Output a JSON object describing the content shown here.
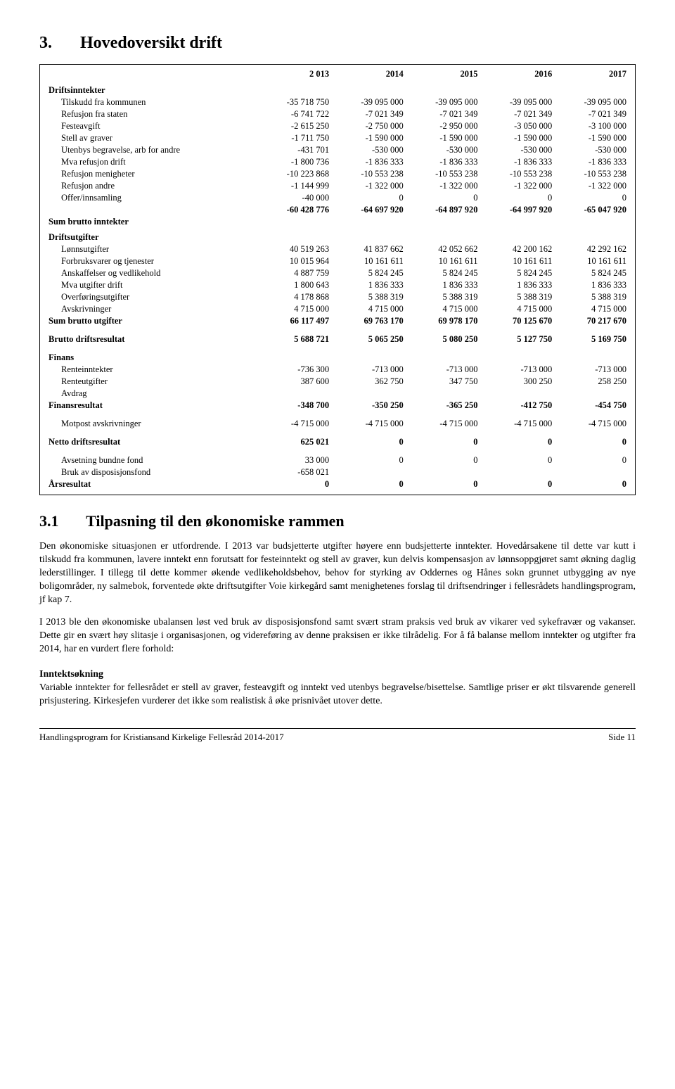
{
  "section": {
    "number": "3.",
    "title": "Hovedoversikt drift"
  },
  "subsection": {
    "number": "3.1",
    "title": "Tilpasning til den økonomiske rammen"
  },
  "years": [
    "2 013",
    "2014",
    "2015",
    "2016",
    "2017"
  ],
  "groups": [
    {
      "head": "Driftsinntekter",
      "rows": [
        {
          "label": "Tilskudd fra kommunen",
          "v": [
            "-35 718 750",
            "-39 095 000",
            "-39 095 000",
            "-39 095 000",
            "-39 095 000"
          ]
        },
        {
          "label": "Refusjon fra staten",
          "v": [
            "-6 741 722",
            "-7 021 349",
            "-7 021 349",
            "-7 021 349",
            "-7 021 349"
          ]
        },
        {
          "label": "Festeavgift",
          "v": [
            "-2 615 250",
            "-2 750 000",
            "-2 950 000",
            "-3 050 000",
            "-3 100 000"
          ]
        },
        {
          "label": "Stell av graver",
          "v": [
            "-1 711 750",
            "-1 590 000",
            "-1 590 000",
            "-1 590 000",
            "-1 590 000"
          ]
        },
        {
          "label": "Utenbys begravelse, arb for andre",
          "v": [
            "-431 701",
            "-530 000",
            "-530 000",
            "-530 000",
            "-530 000"
          ]
        },
        {
          "label": "Mva refusjon drift",
          "v": [
            "-1 800 736",
            "-1 836 333",
            "-1 836 333",
            "-1 836 333",
            "-1 836 333"
          ]
        },
        {
          "label": "Refusjon menigheter",
          "v": [
            "-10 223 868",
            "-10 553 238",
            "-10 553 238",
            "-10 553 238",
            "-10 553 238"
          ]
        },
        {
          "label": "Refusjon andre",
          "v": [
            "-1 144 999",
            "-1 322 000",
            "-1 322 000",
            "-1 322 000",
            "-1 322 000"
          ]
        },
        {
          "label": "Offer/innsamling",
          "v": [
            "-40 000",
            "0",
            "0",
            "0",
            "0"
          ]
        }
      ],
      "tail_total": {
        "v": [
          "-60 428 776",
          "-64 697 920",
          "-64 897 920",
          "-64 997 920",
          "-65 047 920"
        ]
      },
      "tail_label": "Sum brutto inntekter"
    },
    {
      "head": "Driftsutgifter",
      "rows": [
        {
          "label": "Lønnsutgifter",
          "v": [
            "40 519 263",
            "41 837 662",
            "42 052 662",
            "42 200 162",
            "42 292 162"
          ]
        },
        {
          "label": "Forbruksvarer og tjenester",
          "v": [
            "10 015 964",
            "10 161 611",
            "10 161 611",
            "10 161 611",
            "10 161 611"
          ]
        },
        {
          "label": "Anskaffelser og vedlikehold",
          "v": [
            "4 887 759",
            "5 824 245",
            "5 824 245",
            "5 824 245",
            "5 824 245"
          ]
        },
        {
          "label": "Mva utgifter drift",
          "v": [
            "1 800 643",
            "1 836 333",
            "1 836 333",
            "1 836 333",
            "1 836 333"
          ]
        },
        {
          "label": "Overføringsutgifter",
          "v": [
            "4 178 868",
            "5 388 319",
            "5 388 319",
            "5 388 319",
            "5 388 319"
          ]
        },
        {
          "label": "Avskrivninger",
          "v": [
            "4 715 000",
            "4 715 000",
            "4 715 000",
            "4 715 000",
            "4 715 000"
          ]
        }
      ],
      "sum_row": {
        "label": "Sum brutto utgifter",
        "v": [
          "66 117 497",
          "69 763 170",
          "69 978 170",
          "70 125 670",
          "70 217 670"
        ]
      }
    }
  ],
  "result_rows": [
    {
      "label": "Brutto driftsresultat",
      "bold": true,
      "gap": true,
      "v": [
        "5 688 721",
        "5 065 250",
        "5 080 250",
        "5 127 750",
        "5 169 750"
      ]
    }
  ],
  "finans": {
    "head": "Finans",
    "rows": [
      {
        "label": "Renteinntekter",
        "v": [
          "-736 300",
          "-713 000",
          "-713 000",
          "-713 000",
          "-713 000"
        ]
      },
      {
        "label": "Renteutgifter",
        "v": [
          "387 600",
          "362 750",
          "347 750",
          "300 250",
          "258 250"
        ]
      },
      {
        "label": "Avdrag",
        "v": [
          "",
          "",
          "",
          "",
          ""
        ]
      }
    ],
    "sum_row": {
      "label": "Finansresultat",
      "v": [
        "-348 700",
        "-350 250",
        "-365 250",
        "-412 750",
        "-454 750"
      ]
    }
  },
  "post_finans": [
    {
      "label": "Motpost avskrivninger",
      "indent": true,
      "gap": true,
      "v": [
        "-4 715 000",
        "-4 715 000",
        "-4 715 000",
        "-4 715 000",
        "-4 715 000"
      ]
    },
    {
      "label": "Netto driftsresultat",
      "bold": true,
      "gap": true,
      "v": [
        "625 021",
        "0",
        "0",
        "0",
        "0"
      ]
    },
    {
      "label": "Avsetning bundne fond",
      "indent": true,
      "gap": true,
      "v": [
        "33 000",
        "0",
        "0",
        "0",
        "0"
      ]
    },
    {
      "label": "Bruk av disposisjonsfond",
      "indent": true,
      "v": [
        "-658 021",
        "",
        "",
        "",
        ""
      ]
    },
    {
      "label": "Årsresultat",
      "bold": true,
      "v": [
        "0",
        "0",
        "0",
        "0",
        "0"
      ]
    }
  ],
  "paragraphs": [
    "Den økonomiske situasjonen er utfordrende. I 2013 var budsjetterte utgifter høyere enn budsjetterte inntekter. Hovedårsakene til dette var kutt i tilskudd fra kommunen, lavere inntekt enn forutsatt for festeinntekt og stell av graver, kun delvis kompensasjon av lønnsoppgjøret samt økning daglig lederstillinger. I tillegg til dette kommer økende vedlikeholdsbehov, behov for styrking av Oddernes og Hånes sokn grunnet utbygging av nye boligområder, ny salmebok, forventede økte driftsutgifter Voie kirkegård samt menighetenes forslag til driftsendringer i fellesrådets handlingsprogram, jf kap 7.",
    "I 2013 ble den økonomiske ubalansen løst ved bruk av disposisjonsfond samt svært stram praksis ved bruk av vikarer ved sykefravær og vakanser. Dette gir en svært høy slitasje i organisasjonen, og videreføring av denne praksisen er ikke tilrådelig. For å få balanse mellom inntekter og utgifter fra 2014, har en vurdert flere forhold:"
  ],
  "subhead": "Inntektsøkning",
  "paragraph_sub": "Variable inntekter for fellesrådet er stell av graver, festeavgift og inntekt ved utenbys begravelse/bisettelse. Samtlige priser er økt tilsvarende generell prisjustering. Kirkesjefen vurderer det ikke som realistisk å øke prisnivået utover dette.",
  "footer": {
    "left": "Handlingsprogram for Kristiansand Kirkelige Fellesråd 2014-2017",
    "right": "Side 11"
  }
}
